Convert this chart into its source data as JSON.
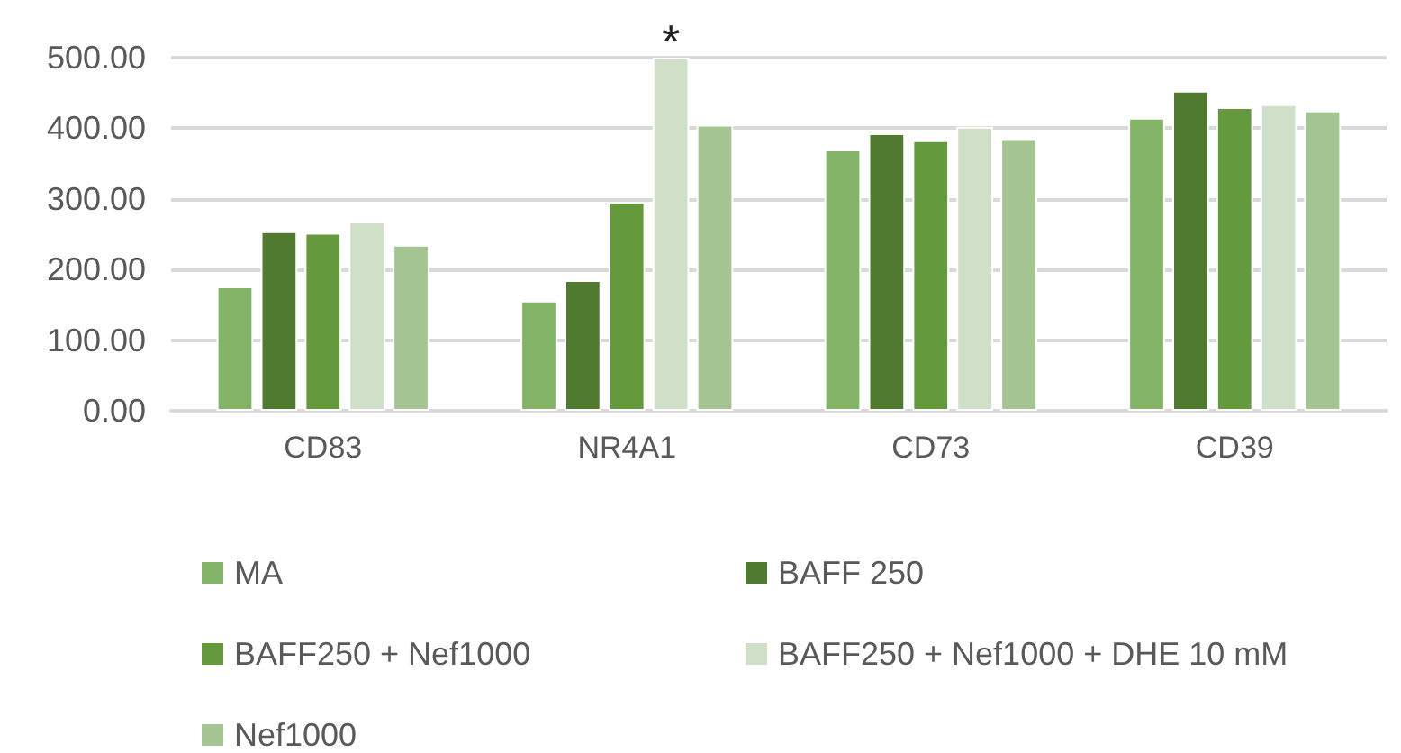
{
  "chart_data": {
    "type": "bar",
    "categories": [
      "CD83",
      "NR4A1",
      "CD73",
      "CD39"
    ],
    "series": [
      {
        "name": "MA",
        "color": "#83b366",
        "values": [
          176,
          156,
          370,
          415
        ]
      },
      {
        "name": "BAFF 250",
        "color": "#4f7a2f",
        "values": [
          254,
          185,
          393,
          453
        ]
      },
      {
        "name": "BAFF250 + Nef1000",
        "color": "#64993e",
        "values": [
          252,
          296,
          383,
          430
        ]
      },
      {
        "name": "BAFF250 + Nef1000 + DHE 10 mM",
        "color": "#d0dfc8",
        "values": [
          268,
          500,
          402,
          434
        ]
      },
      {
        "name": "Nef1000",
        "color": "#a4c592",
        "values": [
          235,
          405,
          386,
          425
        ]
      }
    ],
    "ylim": [
      0,
      500
    ],
    "yticks": [
      {
        "value": 0,
        "label": "0.00"
      },
      {
        "value": 100,
        "label": "100.00"
      },
      {
        "value": 200,
        "label": "200.00"
      },
      {
        "value": 300,
        "label": "300.00"
      },
      {
        "value": 400,
        "label": "400.00"
      },
      {
        "value": 500,
        "label": "500.00"
      }
    ],
    "grid": "y",
    "legend": "bottom",
    "annotations": [
      "*"
    ]
  }
}
